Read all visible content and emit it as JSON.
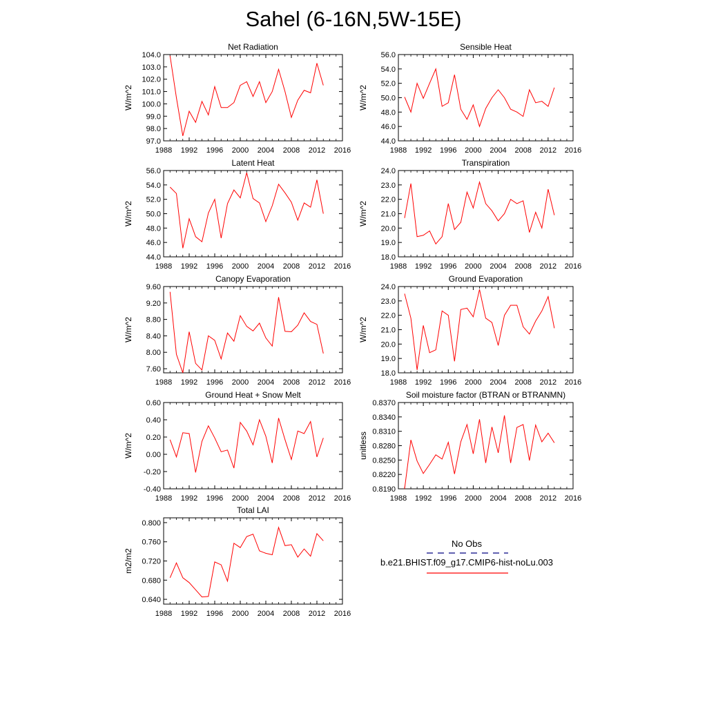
{
  "title": "Sahel (6-16N,5W-15E)",
  "legend": {
    "entries": [
      {
        "label": "No Obs",
        "color": "#000080",
        "dash": true
      },
      {
        "label": "b.e21.BHIST.f09_g17.CMIP6-hist-noLu.003",
        "color": "#ff0000",
        "dash": false
      }
    ]
  },
  "chart_data": [
    {
      "type": "line",
      "title": "Net Radiation",
      "ylabel": "W/m^2",
      "xlim": [
        1988,
        2016
      ],
      "ylim": [
        97.0,
        104.0
      ],
      "xticks": [
        1988,
        1992,
        1996,
        2000,
        2004,
        2008,
        2012,
        2016
      ],
      "yticks": [
        "97.0",
        "98.0",
        "99.0",
        "100.0",
        "101.0",
        "102.0",
        "103.0",
        "104.0"
      ],
      "x": [
        1989,
        1990,
        1991,
        1992,
        1993,
        1994,
        1995,
        1996,
        1997,
        1998,
        1999,
        2000,
        2001,
        2002,
        2003,
        2004,
        2005,
        2006,
        2007,
        2008,
        2009,
        2010,
        2011,
        2012,
        2013
      ],
      "values": [
        103.9,
        100.5,
        97.4,
        99.4,
        98.5,
        100.2,
        99.1,
        101.4,
        99.7,
        99.7,
        100.1,
        101.5,
        101.8,
        100.6,
        101.8,
        100.1,
        101.0,
        102.8,
        101.0,
        98.9,
        100.3,
        101.1,
        100.9,
        103.3,
        101.5
      ],
      "color": "#ff0000"
    },
    {
      "type": "line",
      "title": "Sensible Heat",
      "ylabel": "W/m^2",
      "xlim": [
        1988,
        2016
      ],
      "ylim": [
        44.0,
        56.0
      ],
      "xticks": [
        1988,
        1992,
        1996,
        2000,
        2004,
        2008,
        2012,
        2016
      ],
      "yticks": [
        "44.0",
        "46.0",
        "48.0",
        "50.0",
        "52.0",
        "54.0",
        "56.0"
      ],
      "x": [
        1989,
        1990,
        1991,
        1992,
        1993,
        1994,
        1995,
        1996,
        1997,
        1998,
        1999,
        2000,
        2001,
        2002,
        2003,
        2004,
        2005,
        2006,
        2007,
        2008,
        2009,
        2010,
        2011,
        2012,
        2013
      ],
      "values": [
        50.1,
        48.0,
        52.0,
        49.9,
        52.0,
        54.0,
        48.8,
        49.3,
        53.2,
        48.4,
        47.0,
        49.0,
        46.0,
        48.5,
        50.0,
        51.1,
        50.0,
        48.4,
        48.0,
        47.4,
        51.1,
        49.3,
        49.5,
        48.8,
        51.4
      ],
      "color": "#ff0000"
    },
    {
      "type": "line",
      "title": "Latent Heat",
      "ylabel": "W/m^2",
      "xlim": [
        1988,
        2016
      ],
      "ylim": [
        44.0,
        56.0
      ],
      "xticks": [
        1988,
        1992,
        1996,
        2000,
        2004,
        2008,
        2012,
        2016
      ],
      "yticks": [
        "44.0",
        "46.0",
        "48.0",
        "50.0",
        "52.0",
        "54.0",
        "56.0"
      ],
      "x": [
        1989,
        1990,
        1991,
        1992,
        1993,
        1994,
        1995,
        1996,
        1997,
        1998,
        1999,
        2000,
        2001,
        2002,
        2003,
        2004,
        2005,
        2006,
        2007,
        2008,
        2009,
        2010,
        2011,
        2012,
        2013
      ],
      "values": [
        53.7,
        52.8,
        45.2,
        49.3,
        46.8,
        46.1,
        50.1,
        52.0,
        46.6,
        51.4,
        53.3,
        52.2,
        55.7,
        52.1,
        51.5,
        48.9,
        51.1,
        54.1,
        52.9,
        51.6,
        49.1,
        51.5,
        50.9,
        54.7,
        50.0
      ],
      "color": "#ff0000"
    },
    {
      "type": "line",
      "title": "Transpiration",
      "ylabel": "W/m^2",
      "xlim": [
        1988,
        2016
      ],
      "ylim": [
        18.0,
        24.0
      ],
      "xticks": [
        1988,
        1992,
        1996,
        2000,
        2004,
        2008,
        2012,
        2016
      ],
      "yticks": [
        "18.0",
        "19.0",
        "20.0",
        "21.0",
        "22.0",
        "23.0",
        "24.0"
      ],
      "x": [
        1989,
        1990,
        1991,
        1992,
        1993,
        1994,
        1995,
        1996,
        1997,
        1998,
        1999,
        2000,
        2001,
        2002,
        2003,
        2004,
        2005,
        2006,
        2007,
        2008,
        2009,
        2010,
        2011,
        2012,
        2013
      ],
      "values": [
        20.7,
        23.1,
        19.4,
        19.5,
        19.8,
        18.9,
        19.4,
        21.7,
        19.9,
        20.4,
        22.5,
        21.4,
        23.2,
        21.7,
        21.2,
        20.5,
        21.0,
        22.0,
        21.7,
        21.9,
        19.7,
        21.1,
        20.0,
        22.7,
        20.9
      ],
      "color": "#ff0000"
    },
    {
      "type": "line",
      "title": "Canopy Evaporation",
      "ylabel": "W/m^2",
      "xlim": [
        1988,
        2016
      ],
      "ylim": [
        7.5,
        9.6
      ],
      "xticks": [
        1988,
        1992,
        1996,
        2000,
        2004,
        2008,
        2012,
        2016
      ],
      "yticks": [
        "7.60",
        "8.00",
        "8.40",
        "8.80",
        "9.20",
        "9.60"
      ],
      "x": [
        1989,
        1990,
        1991,
        1992,
        1993,
        1994,
        1995,
        1996,
        1997,
        1998,
        1999,
        2000,
        2001,
        2002,
        2003,
        2004,
        2005,
        2006,
        2007,
        2008,
        2009,
        2010,
        2011,
        2012,
        2013
      ],
      "values": [
        9.47,
        7.95,
        7.5,
        8.5,
        7.73,
        7.57,
        8.4,
        8.29,
        7.84,
        8.47,
        8.27,
        8.89,
        8.63,
        8.52,
        8.71,
        8.35,
        8.15,
        9.34,
        8.51,
        8.5,
        8.66,
        8.96,
        8.75,
        8.68,
        7.97
      ],
      "color": "#ff0000"
    },
    {
      "type": "line",
      "title": "Ground Evaporation",
      "ylabel": "W/m^2",
      "xlim": [
        1988,
        2016
      ],
      "ylim": [
        18.0,
        24.0
      ],
      "xticks": [
        1988,
        1992,
        1996,
        2000,
        2004,
        2008,
        2012,
        2016
      ],
      "yticks": [
        "18.0",
        "19.0",
        "20.0",
        "21.0",
        "22.0",
        "23.0",
        "24.0"
      ],
      "x": [
        1989,
        1990,
        1991,
        1992,
        1993,
        1994,
        1995,
        1996,
        1997,
        1998,
        1999,
        2000,
        2001,
        2002,
        2003,
        2004,
        2005,
        2006,
        2007,
        2008,
        2009,
        2010,
        2011,
        2012,
        2013
      ],
      "values": [
        23.5,
        21.8,
        18.2,
        21.3,
        19.4,
        19.6,
        22.3,
        22.0,
        18.8,
        22.4,
        22.5,
        21.9,
        23.8,
        21.8,
        21.5,
        19.9,
        22.0,
        22.7,
        22.7,
        21.2,
        20.7,
        21.6,
        22.3,
        23.3,
        21.1
      ],
      "color": "#ff0000"
    },
    {
      "type": "line",
      "title": "Ground Heat + Snow Melt",
      "ylabel": "W/m^2",
      "xlim": [
        1988,
        2016
      ],
      "ylim": [
        -0.4,
        0.6
      ],
      "xticks": [
        1988,
        1992,
        1996,
        2000,
        2004,
        2008,
        2012,
        2016
      ],
      "yticks": [
        "-0.40",
        "-0.20",
        "0.00",
        "0.20",
        "0.40",
        "0.60"
      ],
      "x": [
        1989,
        1990,
        1991,
        1992,
        1993,
        1994,
        1995,
        1996,
        1997,
        1998,
        1999,
        2000,
        2001,
        2002,
        2003,
        2004,
        2005,
        2006,
        2007,
        2008,
        2009,
        2010,
        2011,
        2012,
        2013
      ],
      "values": [
        0.17,
        -0.03,
        0.25,
        0.24,
        -0.21,
        0.15,
        0.33,
        0.19,
        0.03,
        0.05,
        -0.16,
        0.37,
        0.27,
        0.11,
        0.4,
        0.21,
        -0.1,
        0.42,
        0.17,
        -0.06,
        0.27,
        0.24,
        0.38,
        -0.03,
        0.19
      ],
      "color": "#ff0000"
    },
    {
      "type": "line",
      "title": "Soil moisture factor (BTRAN or BTRANMN)",
      "ylabel": "unitless",
      "xlim": [
        1988,
        2016
      ],
      "ylim": [
        0.819,
        0.837
      ],
      "xticks": [
        1988,
        1992,
        1996,
        2000,
        2004,
        2008,
        2012,
        2016
      ],
      "yticks": [
        "0.8190",
        "0.8220",
        "0.8250",
        "0.8280",
        "0.8310",
        "0.8340",
        "0.8370"
      ],
      "x": [
        1989,
        1990,
        1991,
        1992,
        1993,
        1994,
        1995,
        1996,
        1997,
        1998,
        1999,
        2000,
        2001,
        2002,
        2003,
        2004,
        2005,
        2006,
        2007,
        2008,
        2009,
        2010,
        2011,
        2012,
        2013
      ],
      "values": [
        0.819,
        0.8292,
        0.8248,
        0.8222,
        0.8241,
        0.8261,
        0.8252,
        0.8287,
        0.8221,
        0.8288,
        0.8324,
        0.8263,
        0.8335,
        0.8244,
        0.8319,
        0.8265,
        0.8343,
        0.8244,
        0.8318,
        0.8324,
        0.8249,
        0.8323,
        0.8288,
        0.8306,
        0.8286
      ],
      "color": "#ff0000"
    },
    {
      "type": "line",
      "title": "Total LAI",
      "ylabel": "m2/m2",
      "xlim": [
        1988,
        2016
      ],
      "ylim": [
        0.63,
        0.81
      ],
      "xticks": [
        1988,
        1992,
        1996,
        2000,
        2004,
        2008,
        2012,
        2016
      ],
      "yticks": [
        "0.640",
        "0.680",
        "0.720",
        "0.760",
        "0.800"
      ],
      "x": [
        1989,
        1990,
        1991,
        1992,
        1993,
        1994,
        1995,
        1996,
        1997,
        1998,
        1999,
        2000,
        2001,
        2002,
        2003,
        2004,
        2005,
        2006,
        2007,
        2008,
        2009,
        2010,
        2011,
        2012,
        2013
      ],
      "values": [
        0.685,
        0.716,
        0.685,
        0.675,
        0.66,
        0.645,
        0.646,
        0.718,
        0.712,
        0.678,
        0.757,
        0.748,
        0.771,
        0.776,
        0.741,
        0.736,
        0.733,
        0.79,
        0.752,
        0.754,
        0.728,
        0.745,
        0.73,
        0.777,
        0.762
      ],
      "color": "#ff0000"
    }
  ]
}
